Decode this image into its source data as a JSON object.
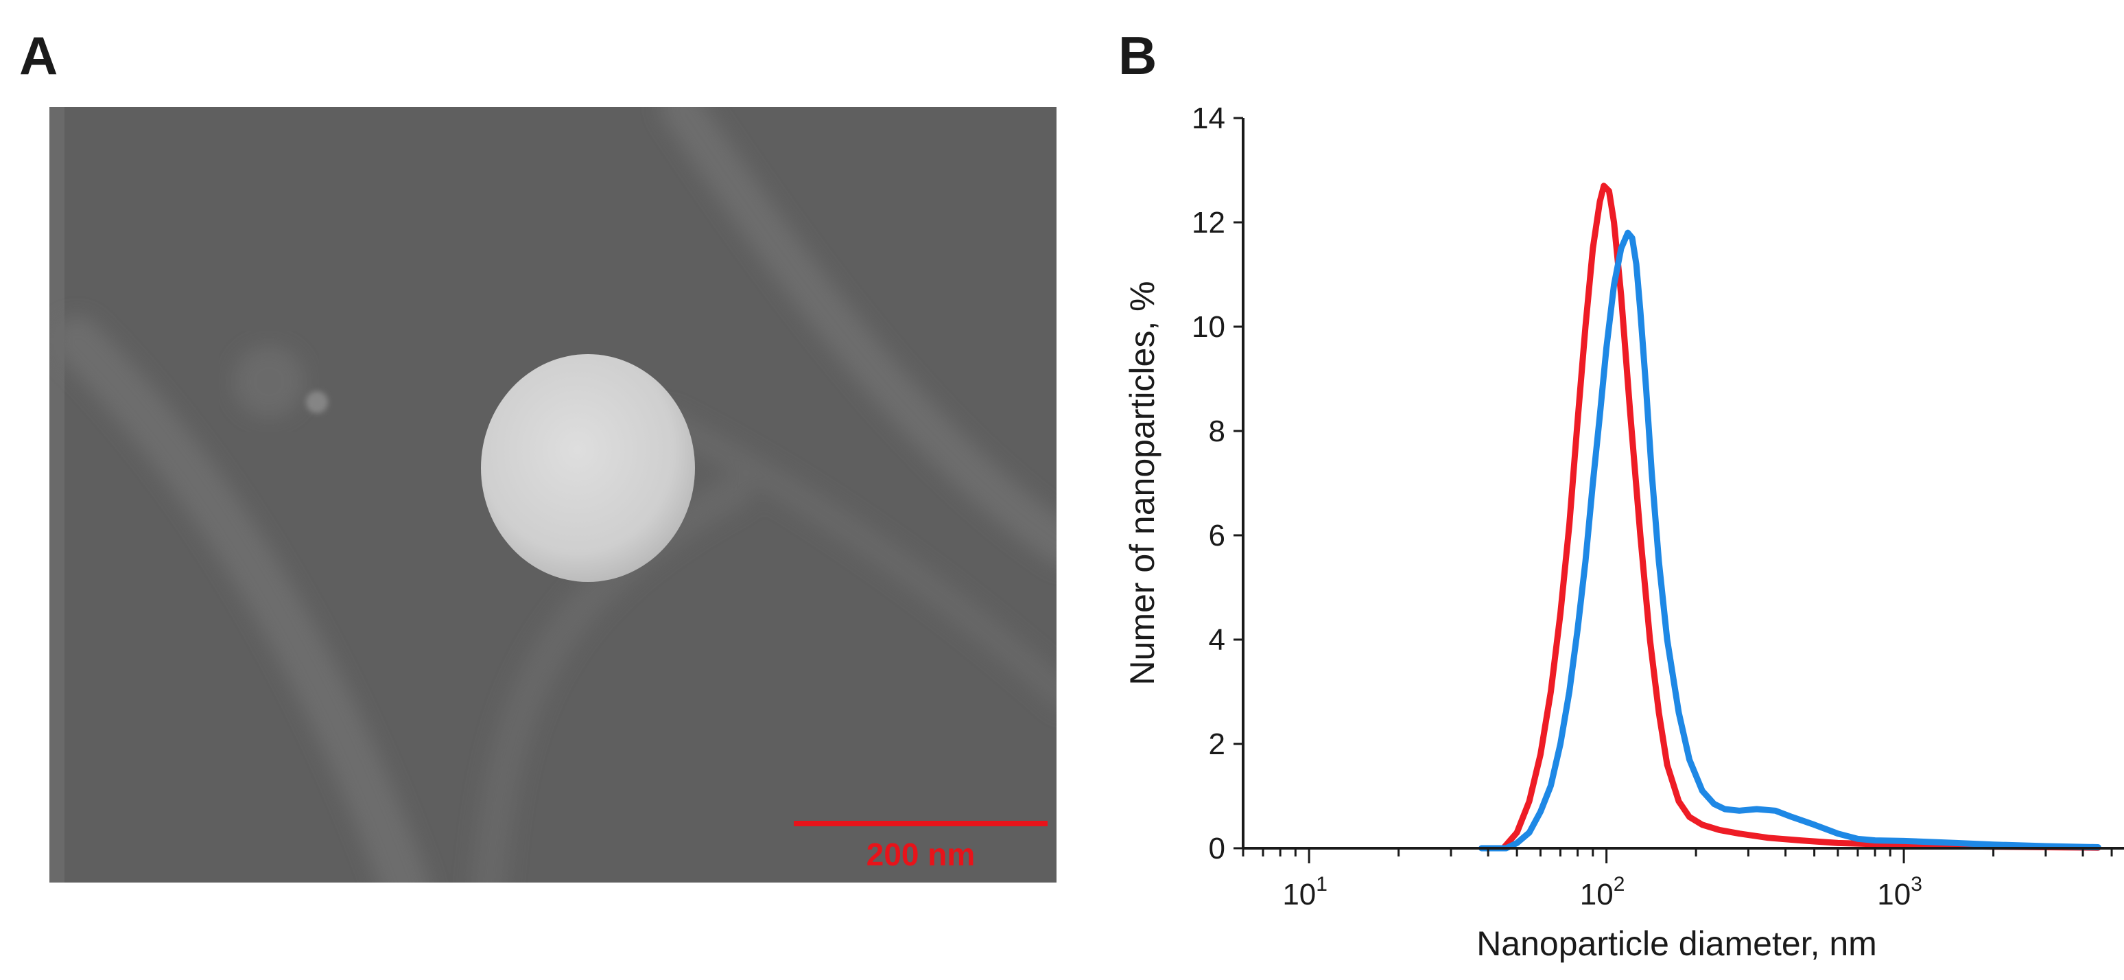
{
  "panels": {
    "a": {
      "letter": "A",
      "scale_bar_label": "200 nm",
      "scale_bar_color": "#e8131a"
    },
    "b": {
      "letter": "B"
    }
  },
  "chart_data": {
    "type": "line",
    "xscale": "log",
    "xlabel": "Nanoparticle diameter, nm",
    "ylabel": "Numer of nanoparticles, %",
    "xlim": [
      6,
      5500
    ],
    "ylim": [
      0,
      14
    ],
    "yticks": [
      0,
      2,
      4,
      6,
      8,
      10,
      12,
      14
    ],
    "xticks": [
      {
        "value": 10,
        "base": "10",
        "exp": "1"
      },
      {
        "value": 100,
        "base": "10",
        "exp": "2"
      },
      {
        "value": 1000,
        "base": "10",
        "exp": "3"
      }
    ],
    "series": [
      {
        "name": "red",
        "color": "#ee1c25",
        "x": [
          45,
          50,
          55,
          60,
          65,
          70,
          75,
          80,
          85,
          90,
          95,
          98,
          102,
          106,
          112,
          120,
          130,
          140,
          150,
          160,
          175,
          190,
          210,
          240,
          280,
          350,
          450,
          600,
          800,
          1200,
          2000,
          3000,
          4500
        ],
        "y": [
          0.0,
          0.3,
          0.9,
          1.8,
          3.0,
          4.5,
          6.2,
          8.2,
          10.0,
          11.5,
          12.4,
          12.7,
          12.6,
          12.0,
          10.6,
          8.4,
          6.0,
          4.0,
          2.6,
          1.6,
          0.9,
          0.6,
          0.45,
          0.35,
          0.28,
          0.2,
          0.15,
          0.1,
          0.08,
          0.05,
          0.03,
          0.02,
          0.01
        ]
      },
      {
        "name": "blue",
        "color": "#1e88e5",
        "x": [
          38,
          46,
          50,
          55,
          60,
          65,
          70,
          75,
          80,
          85,
          90,
          95,
          100,
          106,
          112,
          118,
          122,
          126,
          130,
          136,
          142,
          150,
          160,
          175,
          190,
          210,
          230,
          250,
          280,
          320,
          370,
          420,
          500,
          600,
          700,
          800,
          1000,
          1500,
          2000,
          3000,
          4500
        ],
        "y": [
          0.0,
          0.0,
          0.1,
          0.3,
          0.7,
          1.2,
          2.0,
          3.0,
          4.2,
          5.5,
          7.0,
          8.3,
          9.6,
          10.8,
          11.5,
          11.8,
          11.7,
          11.2,
          10.3,
          8.8,
          7.2,
          5.5,
          4.0,
          2.6,
          1.7,
          1.1,
          0.85,
          0.75,
          0.72,
          0.75,
          0.72,
          0.6,
          0.45,
          0.28,
          0.18,
          0.15,
          0.14,
          0.1,
          0.07,
          0.04,
          0.02
        ]
      }
    ]
  }
}
